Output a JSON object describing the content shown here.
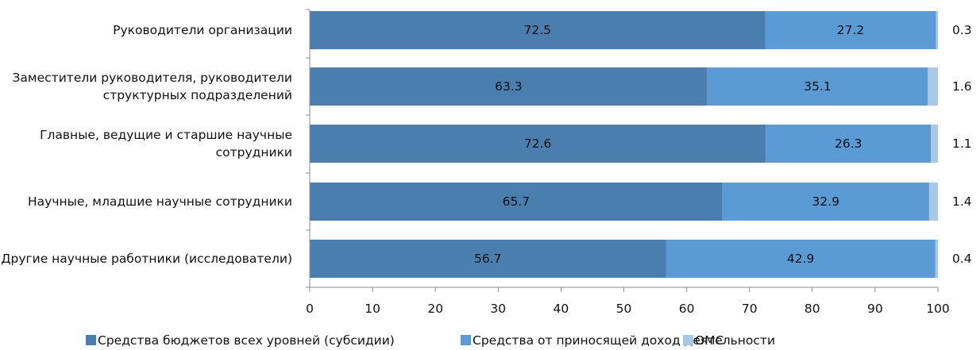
{
  "chart_data": {
    "type": "bar",
    "orientation": "horizontal",
    "stacked": true,
    "categories": [
      [
        "Руководители организации"
      ],
      [
        "Заместители руководителя, руководители",
        "структурных подразделений"
      ],
      [
        "Главные, ведущие  и старшие научные",
        "сотрудники"
      ],
      [
        "Научные, младшие  научные сотрудники"
      ],
      [
        "Другие научные работники (исследователи)"
      ]
    ],
    "series": [
      {
        "name": "Средства бюджетов  всех уровней (субсидии)",
        "color": "#4A7EAF",
        "values": [
          72.5,
          63.3,
          72.6,
          65.7,
          56.7
        ]
      },
      {
        "name": "Средства от приносящей доход деятельности",
        "color": "#5B9BD5",
        "values": [
          27.2,
          35.1,
          26.3,
          32.9,
          42.9
        ]
      },
      {
        "name": "ОМС",
        "color": "#A9C8E8",
        "values": [
          0.3,
          1.6,
          1.1,
          1.4,
          0.4
        ]
      }
    ],
    "xlim": [
      0,
      100
    ],
    "xticks": [
      "0",
      "10",
      "20",
      "30",
      "40",
      "50",
      "60",
      "70",
      "80",
      "90",
      "100"
    ],
    "title": "",
    "xlabel": "",
    "ylabel": "",
    "grid": false,
    "legend": "bottom"
  }
}
